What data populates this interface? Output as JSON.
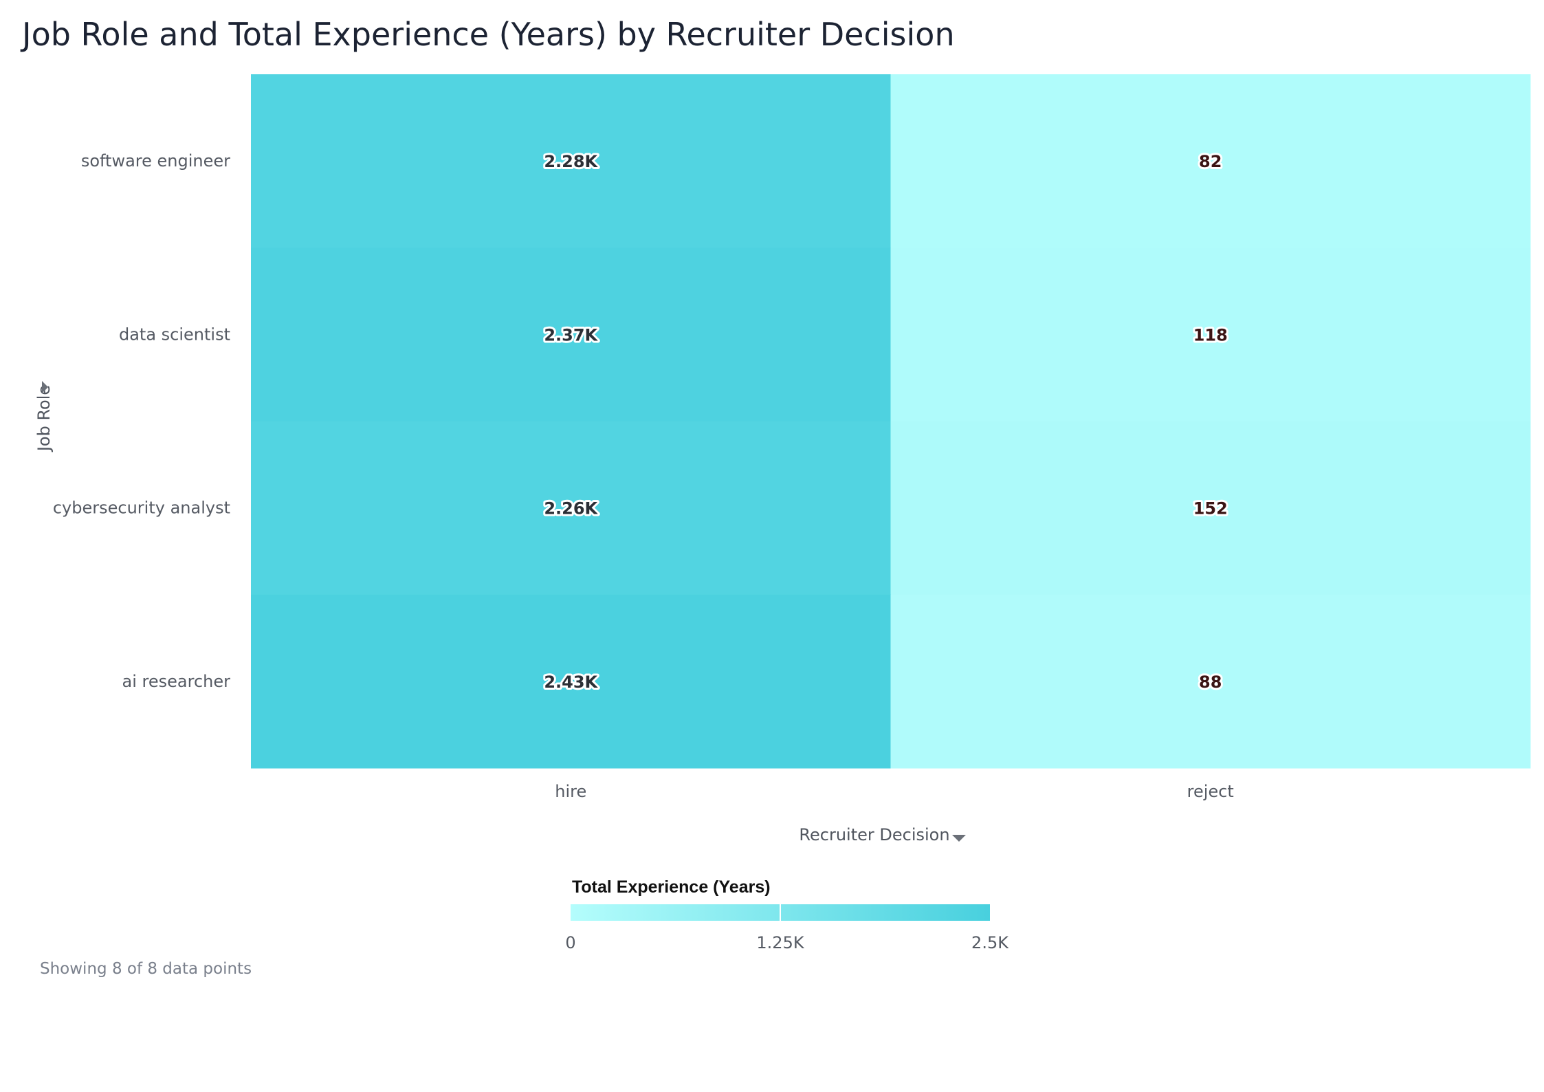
{
  "chart_data": {
    "type": "heatmap",
    "title": "Job Role and Total Experience (Years) by Recruiter Decision",
    "xlabel": "Recruiter Decision",
    "ylabel": "Job Role",
    "x_categories": [
      "hire",
      "reject"
    ],
    "y_categories": [
      "software engineer",
      "data scientist",
      "cybersecurity analyst",
      "ai researcher"
    ],
    "values": [
      [
        2280,
        82
      ],
      [
        2370,
        118
      ],
      [
        2260,
        152
      ],
      [
        2430,
        88
      ]
    ],
    "value_labels": [
      [
        "2.28K",
        "82"
      ],
      [
        "2.37K",
        "118"
      ],
      [
        "2.26K",
        "152"
      ],
      [
        "2.43K",
        "88"
      ]
    ],
    "color_scale": {
      "title": "Total Experience (Years)",
      "min": 0,
      "max": 2500,
      "ticks": [
        0,
        1250,
        2500
      ],
      "tick_labels": [
        "0",
        "1.25K",
        "2.5K"
      ],
      "low_color": "#b4fdfc",
      "high_color": "#48d0de"
    }
  },
  "footer": {
    "status": "Showing 8 of 8 data points"
  },
  "colors": {
    "hire_label_text": "#2b2f36",
    "reject_label_text": "#3a1414"
  }
}
